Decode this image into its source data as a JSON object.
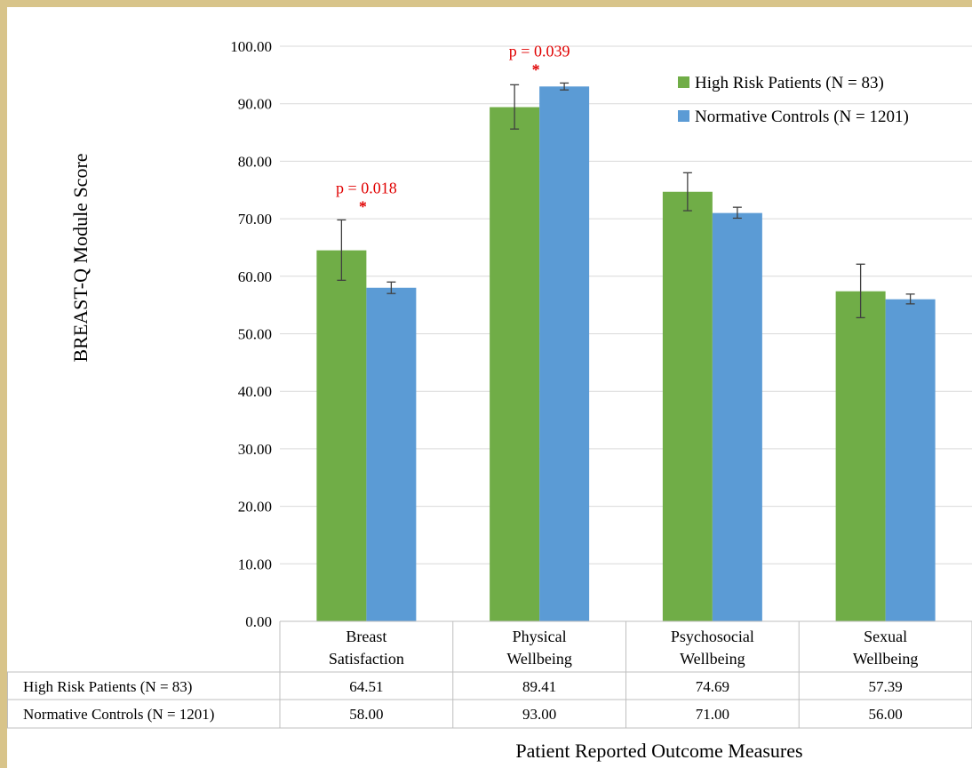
{
  "chart_data": {
    "type": "bar",
    "categories": [
      [
        "Breast",
        "Satisfaction"
      ],
      [
        "Physical",
        "Wellbeing"
      ],
      [
        "Psychosocial",
        "Wellbeing"
      ],
      [
        "Sexual",
        "Wellbeing"
      ]
    ],
    "series": [
      {
        "name": "High Risk Patients (N = 83)",
        "color": "#70ad47",
        "values": [
          64.51,
          89.41,
          74.69,
          57.39
        ],
        "error_low": [
          59.3,
          85.6,
          71.4,
          52.8
        ],
        "error_high": [
          69.8,
          93.3,
          78.0,
          62.1
        ],
        "value_labels": [
          "64.51",
          "89.41",
          "74.69",
          "57.39"
        ]
      },
      {
        "name": "Normative Controls (N = 1201)",
        "color": "#5b9bd5",
        "values": [
          58.0,
          93.0,
          71.0,
          56.0
        ],
        "error_low": [
          57.0,
          92.4,
          70.1,
          55.2
        ],
        "error_high": [
          59.0,
          93.6,
          72.0,
          56.9
        ],
        "value_labels": [
          "58.00",
          "93.00",
          "71.00",
          "56.00"
        ]
      }
    ],
    "ylabel": "BREAST-Q Module Score",
    "xlabel": "Patient Reported Outcome Measures",
    "ylim": [
      0,
      100
    ],
    "yticks": [
      0,
      10,
      20,
      30,
      40,
      50,
      60,
      70,
      80,
      90,
      100
    ],
    "ytick_labels": [
      "0.00",
      "10.00",
      "20.00",
      "30.00",
      "40.00",
      "50.00",
      "60.00",
      "70.00",
      "80.00",
      "90.00",
      "100.00"
    ],
    "grid": true,
    "legend": "top-right",
    "annotations": [
      {
        "category_index": 0,
        "text": "p = 0.018",
        "mark": "*"
      },
      {
        "category_index": 1,
        "text": "p = 0.039",
        "mark": "*"
      }
    ],
    "data_table": true
  }
}
